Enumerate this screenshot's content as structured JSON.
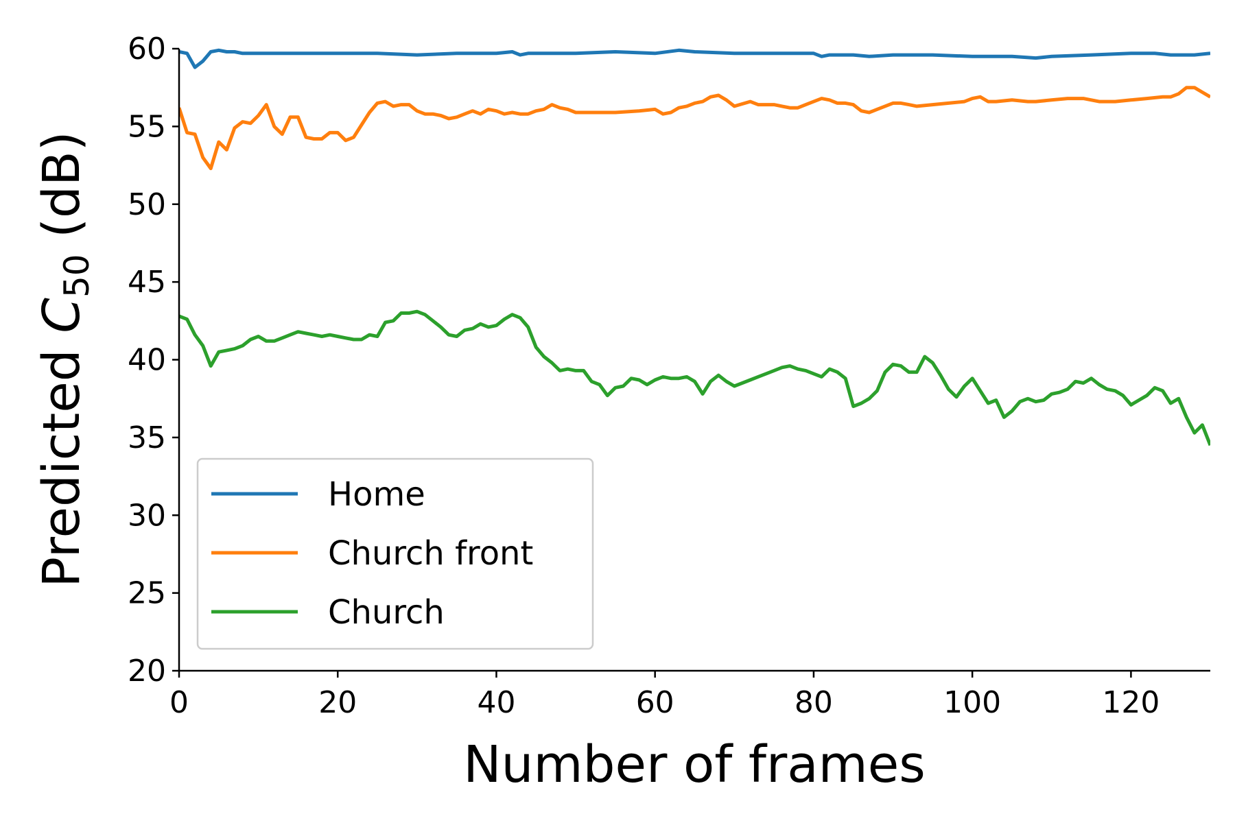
{
  "chart_data": {
    "type": "line",
    "xlabel": "Number of frames",
    "ylabel_prefix": "Predicted ",
    "ylabel_symbol": "C",
    "ylabel_subscript": "50",
    "ylabel_suffix": " (dB)",
    "xlim": [
      0,
      130
    ],
    "ylim": [
      20,
      60
    ],
    "xticks": [
      0,
      20,
      40,
      60,
      80,
      100,
      120
    ],
    "yticks": [
      20,
      25,
      30,
      35,
      40,
      45,
      50,
      55,
      60
    ],
    "grid": false,
    "legend_position": "lower-left",
    "series": [
      {
        "name": "Home",
        "color": "#1f77b4",
        "x": [
          0,
          1,
          2,
          3,
          4,
          5,
          6,
          7,
          8,
          10,
          15,
          20,
          25,
          30,
          35,
          40,
          42,
          43,
          44,
          45,
          50,
          55,
          60,
          63,
          65,
          70,
          75,
          80,
          81,
          82,
          85,
          87,
          90,
          95,
          100,
          103,
          105,
          108,
          110,
          115,
          120,
          123,
          125,
          128,
          130
        ],
        "y": [
          59.8,
          59.7,
          58.8,
          59.2,
          59.8,
          59.9,
          59.8,
          59.8,
          59.7,
          59.7,
          59.7,
          59.7,
          59.7,
          59.6,
          59.7,
          59.7,
          59.8,
          59.6,
          59.7,
          59.7,
          59.7,
          59.8,
          59.7,
          59.9,
          59.8,
          59.7,
          59.7,
          59.7,
          59.5,
          59.6,
          59.6,
          59.5,
          59.6,
          59.6,
          59.5,
          59.5,
          59.5,
          59.4,
          59.5,
          59.6,
          59.7,
          59.7,
          59.6,
          59.6,
          59.7
        ]
      },
      {
        "name": "Church front",
        "color": "#ff7f0e",
        "x": [
          0,
          1,
          2,
          3,
          4,
          5,
          6,
          7,
          8,
          9,
          10,
          11,
          12,
          13,
          14,
          15,
          16,
          17,
          18,
          19,
          20,
          21,
          22,
          23,
          24,
          25,
          26,
          27,
          28,
          29,
          30,
          31,
          32,
          33,
          34,
          35,
          36,
          37,
          38,
          39,
          40,
          41,
          42,
          43,
          44,
          45,
          46,
          47,
          48,
          49,
          50,
          52,
          55,
          58,
          60,
          61,
          62,
          63,
          64,
          65,
          66,
          67,
          68,
          69,
          70,
          72,
          73,
          75,
          77,
          78,
          79,
          80,
          81,
          82,
          83,
          84,
          85,
          86,
          87,
          88,
          89,
          90,
          91,
          92,
          93,
          95,
          97,
          99,
          100,
          101,
          102,
          103,
          105,
          107,
          108,
          110,
          112,
          114,
          116,
          118,
          120,
          122,
          124,
          125,
          126,
          127,
          128,
          129,
          130
        ],
        "y": [
          56.2,
          54.6,
          54.5,
          53.0,
          52.3,
          54.0,
          53.5,
          54.9,
          55.3,
          55.2,
          55.7,
          56.4,
          55.0,
          54.5,
          55.6,
          55.6,
          54.3,
          54.2,
          54.2,
          54.6,
          54.6,
          54.1,
          54.3,
          55.1,
          55.9,
          56.5,
          56.6,
          56.3,
          56.4,
          56.4,
          56.0,
          55.8,
          55.8,
          55.7,
          55.5,
          55.6,
          55.8,
          56.0,
          55.8,
          56.1,
          56.0,
          55.8,
          55.9,
          55.8,
          55.8,
          56.0,
          56.1,
          56.4,
          56.2,
          56.1,
          55.9,
          55.9,
          55.9,
          56.0,
          56.1,
          55.8,
          55.9,
          56.2,
          56.3,
          56.5,
          56.6,
          56.9,
          57.0,
          56.7,
          56.3,
          56.6,
          56.4,
          56.4,
          56.2,
          56.2,
          56.4,
          56.6,
          56.8,
          56.7,
          56.5,
          56.5,
          56.4,
          56.0,
          55.9,
          56.1,
          56.3,
          56.5,
          56.5,
          56.4,
          56.3,
          56.4,
          56.5,
          56.6,
          56.8,
          56.9,
          56.6,
          56.6,
          56.7,
          56.6,
          56.6,
          56.7,
          56.8,
          56.8,
          56.6,
          56.6,
          56.7,
          56.8,
          56.9,
          56.9,
          57.1,
          57.5,
          57.5,
          57.2,
          56.9
        ]
      },
      {
        "name": "Church",
        "color": "#2ca02c",
        "x": [
          0,
          1,
          2,
          3,
          4,
          5,
          6,
          7,
          8,
          9,
          10,
          11,
          12,
          13,
          14,
          15,
          16,
          17,
          18,
          19,
          20,
          21,
          22,
          23,
          24,
          25,
          26,
          27,
          28,
          29,
          30,
          31,
          32,
          33,
          34,
          35,
          36,
          37,
          38,
          39,
          40,
          41,
          42,
          43,
          44,
          45,
          46,
          47,
          48,
          49,
          50,
          51,
          52,
          53,
          54,
          55,
          56,
          57,
          58,
          59,
          60,
          61,
          62,
          63,
          64,
          65,
          66,
          67,
          68,
          69,
          70,
          71,
          72,
          73,
          74,
          75,
          76,
          77,
          78,
          79,
          80,
          81,
          82,
          83,
          84,
          85,
          86,
          87,
          88,
          89,
          90,
          91,
          92,
          93,
          94,
          95,
          96,
          97,
          98,
          99,
          100,
          101,
          102,
          103,
          104,
          105,
          106,
          107,
          108,
          109,
          110,
          111,
          112,
          113,
          114,
          115,
          116,
          117,
          118,
          119,
          120,
          121,
          122,
          123,
          124,
          125,
          126,
          127,
          128,
          129,
          130
        ],
        "y": [
          42.8,
          42.6,
          41.6,
          40.9,
          39.6,
          40.5,
          40.6,
          40.7,
          40.9,
          41.3,
          41.5,
          41.2,
          41.2,
          41.4,
          41.6,
          41.8,
          41.7,
          41.6,
          41.5,
          41.6,
          41.5,
          41.4,
          41.3,
          41.3,
          41.6,
          41.5,
          42.4,
          42.5,
          43.0,
          43.0,
          43.1,
          42.9,
          42.5,
          42.1,
          41.6,
          41.5,
          41.9,
          42.0,
          42.3,
          42.1,
          42.2,
          42.6,
          42.9,
          42.7,
          42.1,
          40.8,
          40.2,
          39.8,
          39.3,
          39.4,
          39.3,
          39.3,
          38.6,
          38.4,
          37.7,
          38.2,
          38.3,
          38.8,
          38.7,
          38.4,
          38.7,
          38.9,
          38.8,
          38.8,
          38.9,
          38.6,
          37.8,
          38.6,
          39.0,
          38.6,
          38.3,
          38.5,
          38.7,
          38.9,
          39.1,
          39.3,
          39.5,
          39.6,
          39.4,
          39.3,
          39.1,
          38.9,
          39.4,
          39.2,
          38.8,
          37.0,
          37.2,
          37.5,
          38.0,
          39.2,
          39.7,
          39.6,
          39.2,
          39.2,
          40.2,
          39.8,
          39.0,
          38.1,
          37.6,
          38.3,
          38.8,
          38.0,
          37.2,
          37.4,
          36.3,
          36.7,
          37.3,
          37.5,
          37.3,
          37.4,
          37.8,
          37.9,
          38.1,
          38.6,
          38.5,
          38.8,
          38.4,
          38.1,
          38.0,
          37.7,
          37.1,
          37.4,
          37.7,
          38.2,
          38.0,
          37.2,
          37.5,
          36.3,
          35.3,
          35.8,
          34.5
        ]
      }
    ]
  }
}
